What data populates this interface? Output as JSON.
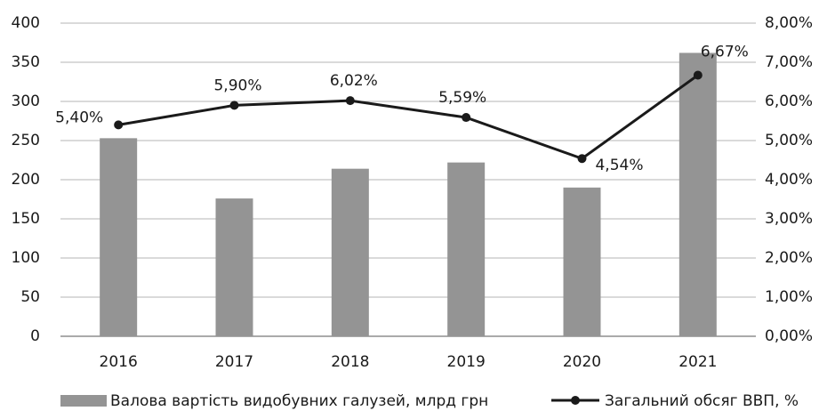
{
  "chart_data": {
    "type": "bar-line",
    "categories": [
      "2016",
      "2017",
      "2018",
      "2019",
      "2020",
      "2021"
    ],
    "series": [
      {
        "name": "Валова вартість видобувних галузей, млрд грн",
        "color": "#949494",
        "type": "bar",
        "values": [
          253,
          176,
          214,
          222,
          190,
          362
        ]
      },
      {
        "name": "Загальний обсяг ВВП, %",
        "color": "#1a1a1a",
        "type": "line",
        "axis": "y2",
        "values": [
          5.4,
          5.9,
          6.02,
          5.59,
          4.54,
          6.67
        ],
        "value_labels": [
          "5,40%",
          "5,90%",
          "6,02%",
          "5,59%",
          "4,54%",
          "6,67%"
        ]
      }
    ],
    "ylim": [
      0,
      400
    ],
    "yticks": [
      0,
      50,
      100,
      150,
      200,
      250,
      300,
      350,
      400
    ],
    "y2lim": [
      0,
      8
    ],
    "y2ticks": [
      {
        "value": 0,
        "label": "0,00%"
      },
      {
        "value": 1,
        "label": "1,00%"
      },
      {
        "value": 2,
        "label": "2,00%"
      },
      {
        "value": 3,
        "label": "3,00%"
      },
      {
        "value": 4,
        "label": "4,00%"
      },
      {
        "value": 5,
        "label": "5,00%"
      },
      {
        "value": 6,
        "label": "6,00%"
      },
      {
        "value": 7,
        "label": "7,00%"
      },
      {
        "value": 8,
        "label": "8,00%"
      }
    ],
    "grid": true,
    "legend": "bottom"
  }
}
